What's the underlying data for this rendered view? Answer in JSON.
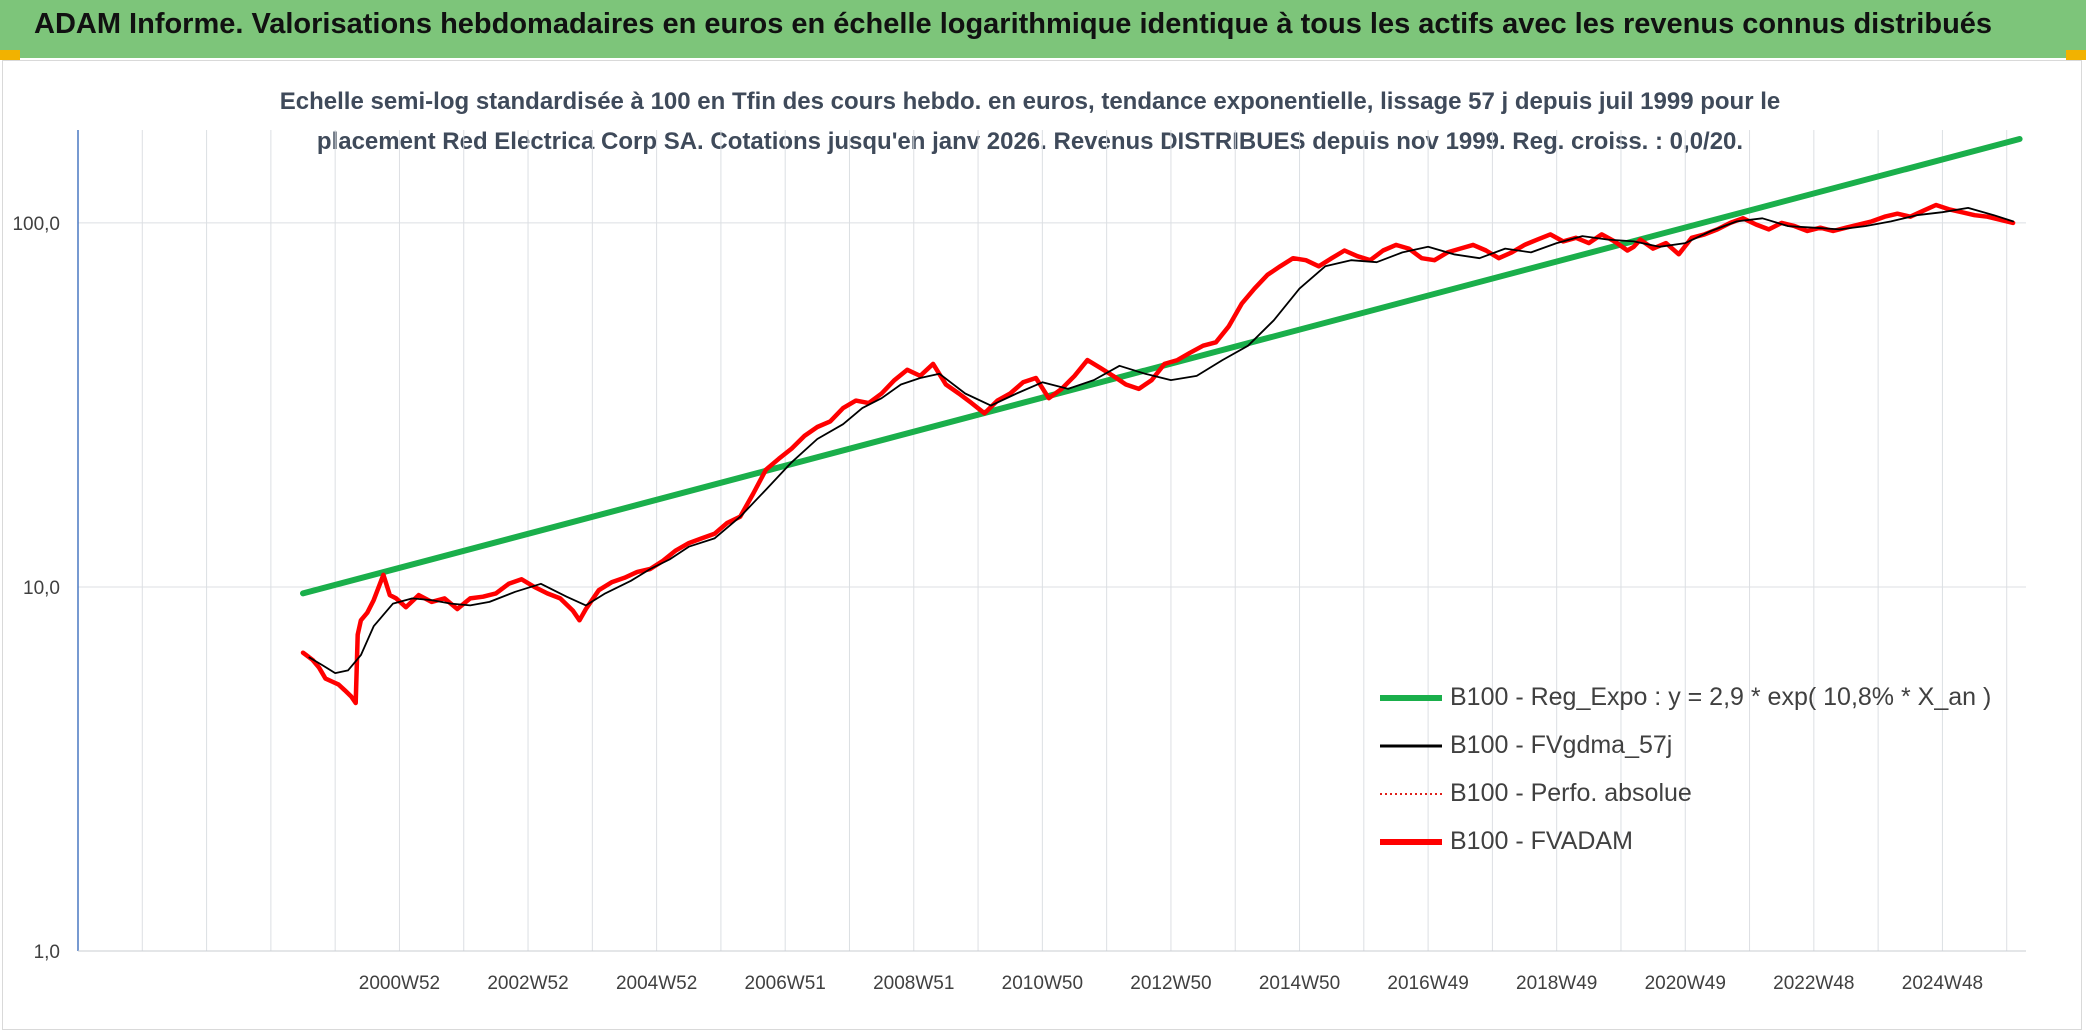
{
  "header": {
    "title": "ADAM Informe. Valorisations hebdomadaires en euros en échelle logarithmique identique à tous les actifs avec les revenus connus distribués"
  },
  "colors": {
    "banner": "#7dc57a",
    "reg_expo": "#1aaf4b",
    "fvgdma": "#000000",
    "perfo": "#e0201b",
    "fvadam": "#ff0000",
    "grid": "#dcdfe3",
    "axis": "#4a78c2"
  },
  "chart_data": {
    "type": "line",
    "title_line1": "Echelle semi-log standardisée à 100 en Tfin des cours hebdo. en euros, tendance exponentielle, lissage 57 j depuis juil 1999 pour le",
    "title_line2": "placement Red Electrica Corp SA. Cotations jusqu'en janv 2026. Revenus DISTRIBUES depuis nov 1999. Reg. croiss. : 0,0/20.",
    "y_scale": "log",
    "ylim": [
      1,
      180
    ],
    "xlim": [
      1996.0,
      2026.3
    ],
    "y_ticks": [
      {
        "value": 1,
        "label": "1,0"
      },
      {
        "value": 10,
        "label": "10,0"
      },
      {
        "value": 100,
        "label": "100,0"
      }
    ],
    "x_tick_labels": [
      "2000W52",
      "2002W52",
      "2004W52",
      "2006W51",
      "2008W51",
      "2010W50",
      "2012W50",
      "2014W50",
      "2016W49",
      "2018W49",
      "2020W49",
      "2022W48",
      "2024W48"
    ],
    "x_tick_positions": [
      2001.0,
      2003.0,
      2005.0,
      2007.0,
      2009.0,
      2011.0,
      2013.0,
      2015.0,
      2017.0,
      2019.0,
      2021.0,
      2023.0,
      2025.0
    ],
    "grid": true,
    "legend_position": "bottom-right",
    "series": [
      {
        "name": "B100 - Reg_Expo : y = 2,9 * exp( 10,8% *  X_an )",
        "key": "reg",
        "x": [
          1999.5,
          2026.2
        ],
        "y": [
          9.6,
          170
        ]
      },
      {
        "name": "B100 - FVgdma_57j",
        "key": "fvgdma",
        "x": [
          1999.6,
          1999.8,
          2000.0,
          2000.2,
          2000.4,
          2000.6,
          2000.9,
          2001.2,
          2001.5,
          2001.8,
          2002.1,
          2002.4,
          2002.8,
          2003.2,
          2003.6,
          2003.9,
          2004.2,
          2004.6,
          2004.9,
          2005.2,
          2005.5,
          2005.9,
          2006.3,
          2006.7,
          2007.1,
          2007.5,
          2007.9,
          2008.2,
          2008.5,
          2008.8,
          2009.1,
          2009.4,
          2009.8,
          2010.2,
          2010.6,
          2011.0,
          2011.4,
          2011.8,
          2012.2,
          2012.6,
          2013.0,
          2013.4,
          2013.8,
          2014.2,
          2014.6,
          2015.0,
          2015.4,
          2015.8,
          2016.2,
          2016.6,
          2017.0,
          2017.4,
          2017.8,
          2018.2,
          2018.6,
          2019.0,
          2019.4,
          2019.8,
          2020.2,
          2020.6,
          2021.0,
          2021.4,
          2021.8,
          2022.2,
          2022.6,
          2023.0,
          2023.4,
          2023.8,
          2024.2,
          2024.6,
          2025.0,
          2025.4,
          2025.8,
          2026.1
        ],
        "y": [
          6.4,
          6.1,
          5.8,
          5.9,
          6.5,
          7.8,
          9.0,
          9.3,
          9.2,
          9.0,
          8.9,
          9.1,
          9.7,
          10.2,
          9.4,
          8.9,
          9.6,
          10.4,
          11.2,
          11.9,
          12.9,
          13.6,
          15.6,
          18.5,
          22.0,
          25.5,
          28.0,
          31.0,
          33.0,
          36.0,
          37.5,
          38.5,
          34.0,
          31.5,
          34.0,
          36.5,
          35.0,
          37.0,
          40.5,
          38.5,
          37.0,
          38.0,
          42.0,
          46.0,
          54.0,
          66.0,
          76.0,
          79.0,
          78.0,
          83.0,
          86.0,
          82.0,
          80.0,
          85.0,
          83.0,
          88.0,
          92.0,
          90.0,
          89.0,
          86.0,
          88.0,
          95.0,
          101.0,
          103.0,
          98.0,
          97.0,
          96.0,
          98.0,
          101.0,
          105.0,
          107.0,
          110.0,
          105.0,
          101.0
        ]
      },
      {
        "name": "B100 - Perfo. absolue",
        "key": "perfo",
        "x": [],
        "y": []
      },
      {
        "name": "B100 - FVADAM",
        "key": "fvadam",
        "x": [
          1999.5,
          1999.55,
          1999.65,
          1999.75,
          1999.85,
          1999.95,
          2000.05,
          2000.15,
          2000.25,
          2000.32,
          2000.35,
          2000.4,
          2000.5,
          2000.6,
          2000.75,
          2000.85,
          2000.95,
          2001.1,
          2001.3,
          2001.5,
          2001.7,
          2001.9,
          2002.1,
          2002.3,
          2002.5,
          2002.7,
          2002.9,
          2003.1,
          2003.3,
          2003.5,
          2003.7,
          2003.8,
          2003.9,
          2004.1,
          2004.3,
          2004.5,
          2004.7,
          2004.9,
          2005.1,
          2005.3,
          2005.5,
          2005.7,
          2005.9,
          2006.1,
          2006.3,
          2006.5,
          2006.7,
          2006.9,
          2007.1,
          2007.3,
          2007.5,
          2007.7,
          2007.9,
          2008.1,
          2008.3,
          2008.5,
          2008.7,
          2008.9,
          2009.1,
          2009.3,
          2009.5,
          2009.7,
          2009.9,
          2010.1,
          2010.3,
          2010.5,
          2010.7,
          2010.9,
          2011.1,
          2011.3,
          2011.5,
          2011.7,
          2011.9,
          2012.1,
          2012.3,
          2012.5,
          2012.7,
          2012.9,
          2013.1,
          2013.3,
          2013.5,
          2013.7,
          2013.9,
          2014.1,
          2014.3,
          2014.5,
          2014.7,
          2014.9,
          2015.1,
          2015.3,
          2015.5,
          2015.7,
          2015.9,
          2016.1,
          2016.3,
          2016.5,
          2016.7,
          2016.9,
          2017.1,
          2017.3,
          2017.5,
          2017.7,
          2017.9,
          2018.1,
          2018.3,
          2018.5,
          2018.7,
          2018.9,
          2019.1,
          2019.3,
          2019.5,
          2019.7,
          2019.9,
          2020.1,
          2020.2,
          2020.3,
          2020.5,
          2020.7,
          2020.9,
          2021.1,
          2021.3,
          2021.5,
          2021.7,
          2021.9,
          2022.1,
          2022.3,
          2022.5,
          2022.7,
          2022.9,
          2023.1,
          2023.3,
          2023.5,
          2023.7,
          2023.9,
          2024.1,
          2024.3,
          2024.5,
          2024.7,
          2024.9,
          2025.1,
          2025.3,
          2025.5,
          2025.7,
          2025.9,
          2026.1
        ],
        "y": [
          6.6,
          6.5,
          6.3,
          6.0,
          5.6,
          5.5,
          5.4,
          5.2,
          5.0,
          4.8,
          7.4,
          8.1,
          8.5,
          9.2,
          10.8,
          9.5,
          9.3,
          8.8,
          9.5,
          9.1,
          9.3,
          8.7,
          9.3,
          9.4,
          9.6,
          10.2,
          10.5,
          10.0,
          9.6,
          9.3,
          8.6,
          8.1,
          8.7,
          9.8,
          10.3,
          10.6,
          11.0,
          11.2,
          11.8,
          12.6,
          13.2,
          13.6,
          14.0,
          15.0,
          15.6,
          18.0,
          21.0,
          22.5,
          24.0,
          26.0,
          27.5,
          28.5,
          31.0,
          32.5,
          32.0,
          34.0,
          37.0,
          39.5,
          38.0,
          41.0,
          36.0,
          34.0,
          32.0,
          30.0,
          32.5,
          34.0,
          36.5,
          37.5,
          33.0,
          35.0,
          38.0,
          42.0,
          40.0,
          38.0,
          36.0,
          35.0,
          37.0,
          41.0,
          42.0,
          44.0,
          46.0,
          47.0,
          52.0,
          60.0,
          66.0,
          72.0,
          76.0,
          80.0,
          79.0,
          76.0,
          80.0,
          84.0,
          81.0,
          79.0,
          84.0,
          87.0,
          85.0,
          80.0,
          79.0,
          83.0,
          85.0,
          87.0,
          84.0,
          80.0,
          83.0,
          87.0,
          90.0,
          93.0,
          89.0,
          91.0,
          88.0,
          93.0,
          89.0,
          84.0,
          86.0,
          90.0,
          85.0,
          88.0,
          82.0,
          91.0,
          93.0,
          96.0,
          100.0,
          103.0,
          99.0,
          96.0,
          100.0,
          98.0,
          95.0,
          97.0,
          95.0,
          97.0,
          99.0,
          101.0,
          104.0,
          106.0,
          104.0,
          108.0,
          112.0,
          109.0,
          107.0,
          105.0,
          104.0,
          102.0,
          100.0
        ]
      }
    ]
  }
}
